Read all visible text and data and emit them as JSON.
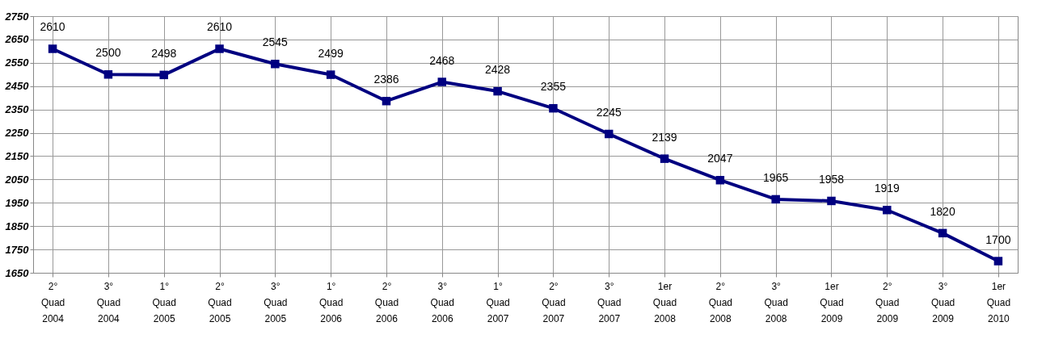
{
  "chart_data": {
    "type": "line",
    "categories": [
      "2°\nQuad\n2004",
      "3°\nQuad\n2004",
      "1°\nQuad\n2005",
      "2°\nQuad\n2005",
      "3°\nQuad\n2005",
      "1°\nQuad\n2006",
      "2°\nQuad\n2006",
      "3°\nQuad\n2006",
      "1°\nQuad\n2007",
      "2°\nQuad\n2007",
      "3°\nQuad\n2007",
      "1er\nQuad\n2008",
      "2°\nQuad\n2008",
      "3°\nQuad\n2008",
      "1er\nQuad\n2009",
      "2°\nQuad\n2009",
      "3°\nQuad\n2009",
      "1er\nQuad\n2010"
    ],
    "series": [
      {
        "color": "#000080",
        "values": [
          2610,
          2500,
          2498,
          2610,
          2545,
          2499,
          2386,
          2468,
          2428,
          2355,
          2245,
          2139,
          2047,
          1965,
          1958,
          1919,
          1820,
          1700
        ]
      }
    ],
    "ylim": [
      1650,
      2750
    ],
    "yticks": [
      1650,
      1750,
      1850,
      1950,
      2050,
      2150,
      2250,
      2350,
      2450,
      2550,
      2650,
      2750
    ],
    "grid": true,
    "marker": "square",
    "data_labels": true,
    "legend": false
  }
}
